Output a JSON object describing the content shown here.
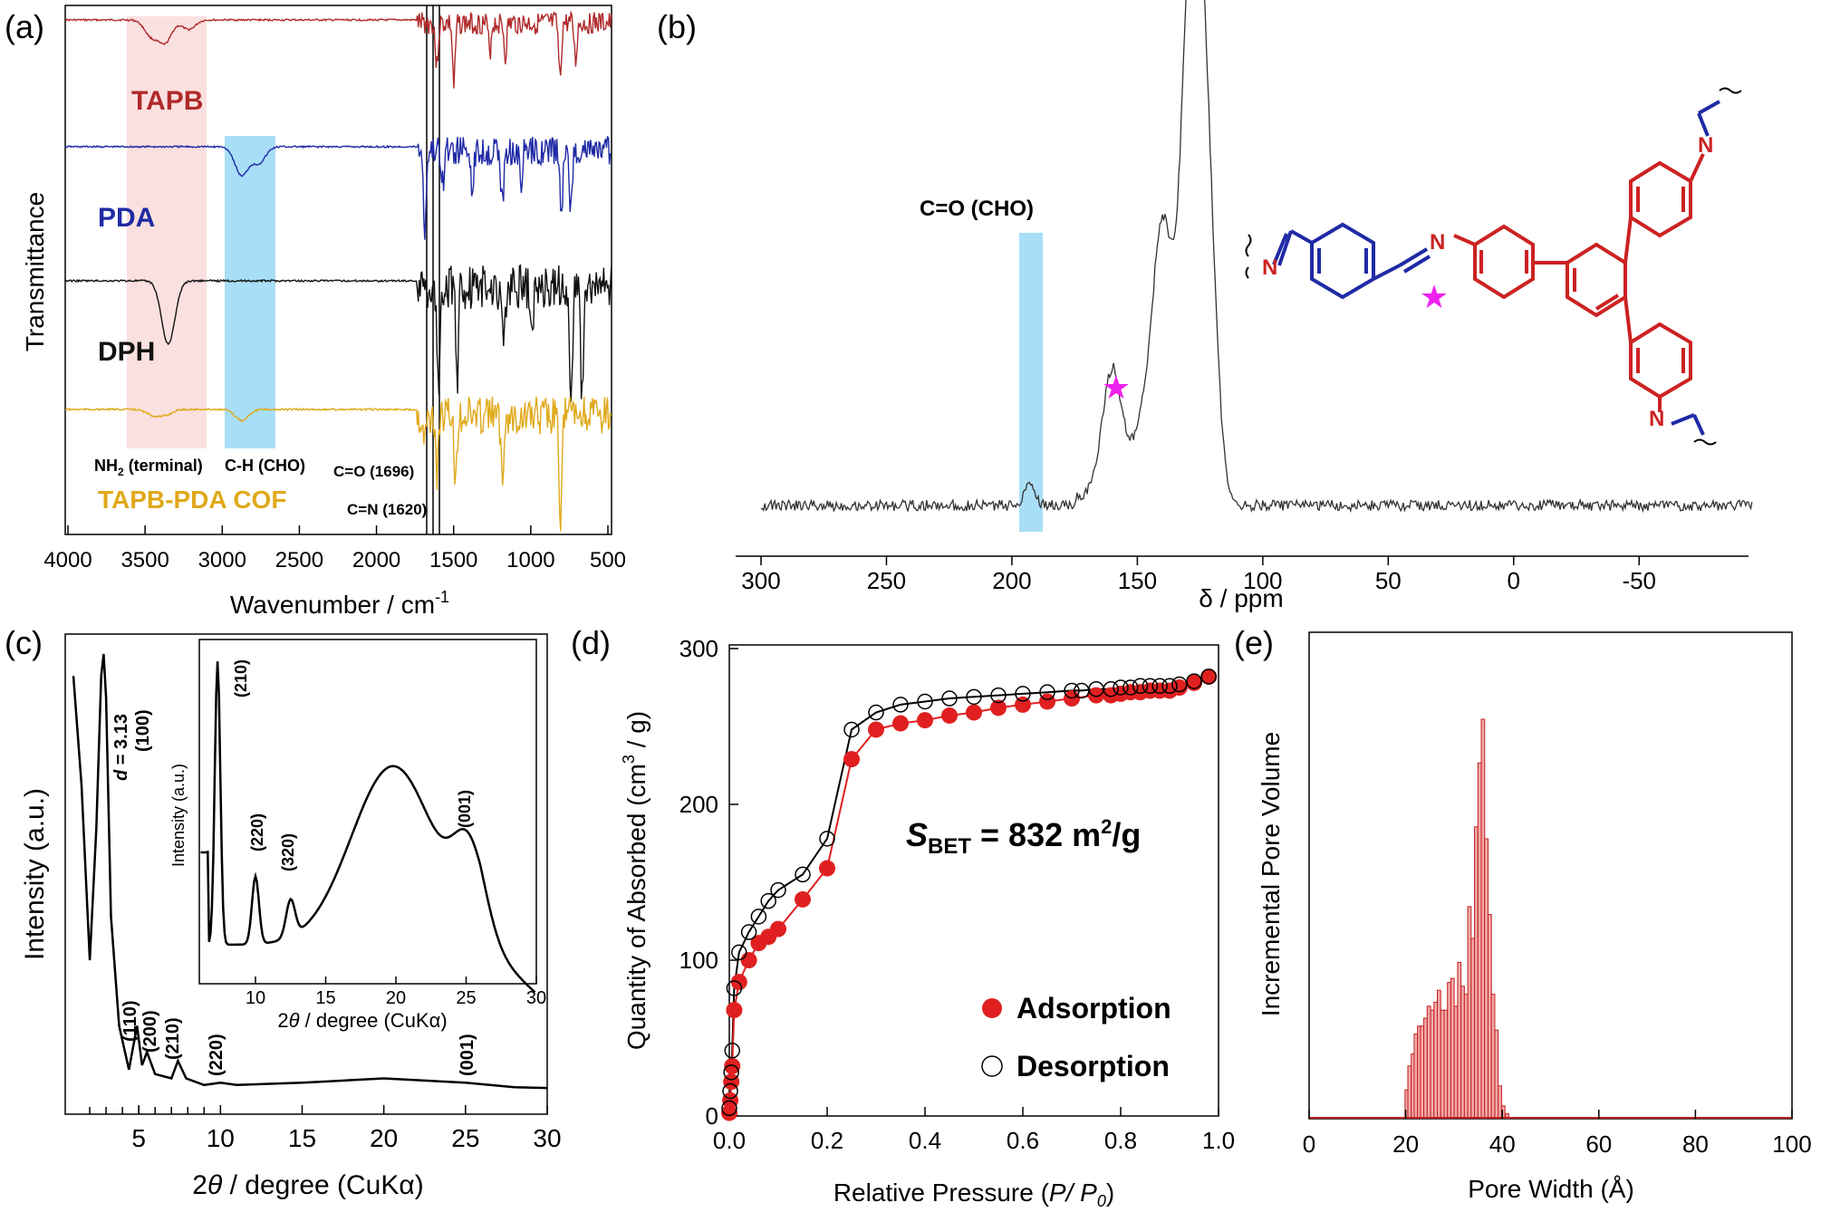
{
  "panels": {
    "a": {
      "label": "(a)",
      "ylabel": "Transmittance",
      "xlabel": "Wavenumber / cm",
      "xlabel_sup": "-1",
      "xticks": [
        "4000",
        "3500",
        "3000",
        "2500",
        "2000",
        "1500",
        "1000",
        "500"
      ],
      "traces": [
        {
          "name": "TAPB",
          "color": "#b02a2a"
        },
        {
          "name": "PDA",
          "color": "#1f2aa5"
        },
        {
          "name": "DPH",
          "color": "#111111"
        },
        {
          "name": "TAPB-PDA COF",
          "color": "#e0a91b"
        }
      ],
      "bands": [
        {
          "text": "NH",
          "sub": "2",
          "rest": " (terminal)",
          "color": "#fbe0e0"
        },
        {
          "text": "C-H (CHO)",
          "color": "#a9def7"
        }
      ],
      "lines": [
        "C=O (1696)",
        "C=N (1620)"
      ]
    },
    "b": {
      "label": "(b)",
      "xlabel": "δ / ppm",
      "xticks": [
        "300",
        "250",
        "200",
        "150",
        "100",
        "50",
        "0",
        "-50"
      ],
      "band_label": "C=O (CHO)",
      "band_color": "#a9def7",
      "star_color": "#ee22ee",
      "structure_atoms": [
        "N",
        "N",
        "N",
        "N"
      ]
    },
    "c": {
      "label": "(c)",
      "ylabel": "Intensity (a.u.)",
      "xlabel_pre": "2",
      "xlabel_theta": "θ",
      "xlabel_post": " / degree (CuKα)",
      "xticks": [
        "5",
        "10",
        "15",
        "20",
        "25",
        "30"
      ],
      "peaks": [
        "(110)",
        "(200)",
        "(210)",
        "(220)",
        "(001)"
      ],
      "main_peak": {
        "d": "d",
        "eq": " = 3.13",
        "hkl": "(100)"
      },
      "inset": {
        "ylabel": "Intensity (a.u.)",
        "xticks": [
          "10",
          "15",
          "20",
          "25",
          "30"
        ],
        "peaks": [
          "(210)",
          "(220)",
          "(320)",
          "(001)"
        ]
      }
    },
    "d": {
      "label": "(d)",
      "ylabel_pre": "Quantity of Absorbed (cm",
      "ylabel_sup": "3",
      "ylabel_post": " / g)",
      "xlabel_pre": "Relative Pressure (",
      "xlabel_it": "P/ P",
      "xlabel_sub": "0",
      "xlabel_post": ")",
      "xticks": [
        "0.0",
        "0.2",
        "0.4",
        "0.6",
        "0.8",
        "1.0"
      ],
      "yticks": [
        "0",
        "100",
        "200",
        "300"
      ],
      "annotation": {
        "s": "S",
        "sub": "BET",
        "eq": " = 832 m",
        "sup": "2",
        "tail": "/g"
      },
      "legend": [
        "Adsorption",
        "Desorption"
      ],
      "adsorption_color": "#e02020"
    },
    "e": {
      "label": "(e)",
      "ylabel": "Incremental Pore Volume",
      "xlabel": "Pore Width (Å)",
      "xticks": [
        "0",
        "20",
        "40",
        "60",
        "80",
        "100"
      ],
      "bar_color": "#f4a9a9",
      "bar_edge": "#c02020"
    }
  },
  "chart_data": [
    {
      "type": "line",
      "panel": "a",
      "xlabel": "Wavenumber / cm-1",
      "ylabel": "Transmittance",
      "xlim": [
        4000,
        500
      ],
      "series": [
        {
          "name": "TAPB",
          "x": [
            3450,
            3360,
            3210,
            1620,
            1510,
            1280,
            1180,
            830,
            730
          ],
          "dips": [
            0.25,
            0.35,
            0.15,
            0.7,
            1.0,
            0.45,
            0.5,
            0.9,
            0.6
          ]
        },
        {
          "name": "PDA",
          "x": [
            2870,
            2760,
            1696,
            1580,
            1390,
            1200,
            1080,
            820,
            760
          ],
          "dips": [
            0.35,
            0.2,
            1.0,
            0.4,
            0.5,
            0.7,
            0.45,
            0.85,
            0.75
          ]
        },
        {
          "name": "DPH",
          "x": [
            3340,
            1610,
            1490,
            1190,
            1010,
            760,
            690
          ],
          "dips": [
            0.5,
            0.8,
            0.75,
            0.5,
            0.45,
            1.0,
            0.9
          ]
        },
        {
          "name": "TAPB-PDA COF",
          "x": [
            3440,
            3360,
            2870,
            1696,
            1620,
            1500,
            1200,
            830
          ],
          "dips": [
            0.05,
            0.05,
            0.1,
            0.2,
            0.6,
            0.7,
            0.6,
            1.0
          ]
        }
      ]
    },
    {
      "type": "line",
      "panel": "b",
      "xlabel": "δ / ppm",
      "xlim": [
        310,
        -95
      ],
      "peaks": [
        {
          "x": 193,
          "y": 0.05
        },
        {
          "x": 160,
          "y": 0.26
        },
        {
          "x": 148,
          "y": 0.12
        },
        {
          "x": 140,
          "y": 0.55
        },
        {
          "x": 129,
          "y": 1.0
        },
        {
          "x": 123,
          "y": 0.72
        }
      ]
    },
    {
      "type": "line",
      "panel": "c",
      "xlabel": "2θ / degree (CuKα)",
      "ylabel": "Intensity (a.u.)",
      "xlim": [
        0,
        30
      ],
      "x": [
        1.0,
        1.5,
        2.0,
        2.4,
        2.7,
        2.85,
        3.0,
        3.3,
        3.8,
        4.4,
        4.9,
        5.2,
        5.5,
        6.0,
        7.0,
        7.4,
        7.9,
        9.0,
        10.0,
        11,
        15,
        20,
        25,
        28,
        30
      ],
      "y": [
        0.95,
        0.7,
        0.3,
        0.6,
        0.95,
        1.0,
        0.9,
        0.4,
        0.15,
        0.05,
        0.15,
        0.06,
        0.09,
        0.04,
        0.03,
        0.07,
        0.03,
        0.015,
        0.02,
        0.015,
        0.02,
        0.03,
        0.02,
        0.01,
        0.008
      ]
    },
    {
      "type": "scatter",
      "panel": "d",
      "xlabel": "Relative Pressure (P/P0)",
      "ylabel": "Quantity of Absorbed (cm3/g)",
      "xlim": [
        0,
        1.0
      ],
      "ylim": [
        0,
        300
      ],
      "series": [
        {
          "name": "Adsorption",
          "x": [
            0.0,
            0.002,
            0.004,
            0.006,
            0.01,
            0.02,
            0.04,
            0.06,
            0.08,
            0.1,
            0.15,
            0.2,
            0.25,
            0.3,
            0.35,
            0.4,
            0.45,
            0.5,
            0.55,
            0.6,
            0.65,
            0.7,
            0.75,
            0.78,
            0.8,
            0.82,
            0.84,
            0.86,
            0.88,
            0.9,
            0.92,
            0.95,
            0.98
          ],
          "y": [
            2,
            10,
            22,
            32,
            68,
            86,
            100,
            111,
            115,
            120,
            139,
            159,
            229,
            248,
            252,
            254,
            257,
            259,
            262,
            264,
            266,
            268,
            270,
            270,
            271,
            272,
            272,
            273,
            273,
            273,
            275,
            278,
            282
          ]
        },
        {
          "name": "Desorption",
          "x": [
            0.0,
            0.002,
            0.004,
            0.006,
            0.01,
            0.02,
            0.04,
            0.06,
            0.08,
            0.1,
            0.15,
            0.2,
            0.25,
            0.3,
            0.35,
            0.4,
            0.45,
            0.5,
            0.55,
            0.6,
            0.65,
            0.7,
            0.72,
            0.75,
            0.78,
            0.8,
            0.82,
            0.84,
            0.86,
            0.88,
            0.9,
            0.92,
            0.95,
            0.98
          ],
          "y": [
            5,
            16,
            28,
            42,
            82,
            105,
            118,
            128,
            138,
            145,
            155,
            178,
            248,
            259,
            264,
            266,
            268,
            269,
            270,
            271,
            272,
            273,
            273,
            274,
            274,
            275,
            275,
            276,
            276,
            276,
            276,
            277,
            279,
            282
          ]
        }
      ]
    },
    {
      "type": "bar",
      "panel": "e",
      "xlabel": "Pore Width (Å)",
      "ylabel": "Incremental Pore Volume",
      "xlim": [
        0,
        100
      ],
      "x": [
        20.2,
        20.8,
        21.5,
        22.1,
        22.8,
        23.4,
        24.1,
        24.8,
        25.5,
        26.2,
        26.9,
        27.6,
        28.3,
        29.0,
        29.7,
        30.4,
        31.1,
        31.8,
        32.5,
        33.2,
        33.9,
        34.6,
        35.3,
        36.0,
        36.7,
        37.4,
        38.1,
        38.8,
        39.5,
        40.2,
        41.0
      ],
      "values": [
        0.07,
        0.13,
        0.16,
        0.21,
        0.23,
        0.23,
        0.25,
        0.28,
        0.27,
        0.29,
        0.32,
        0.27,
        0.27,
        0.34,
        0.35,
        0.28,
        0.39,
        0.33,
        0.31,
        0.53,
        0.45,
        0.73,
        0.89,
        1.0,
        0.7,
        0.51,
        0.31,
        0.22,
        0.08,
        0.03,
        0.01
      ]
    }
  ]
}
